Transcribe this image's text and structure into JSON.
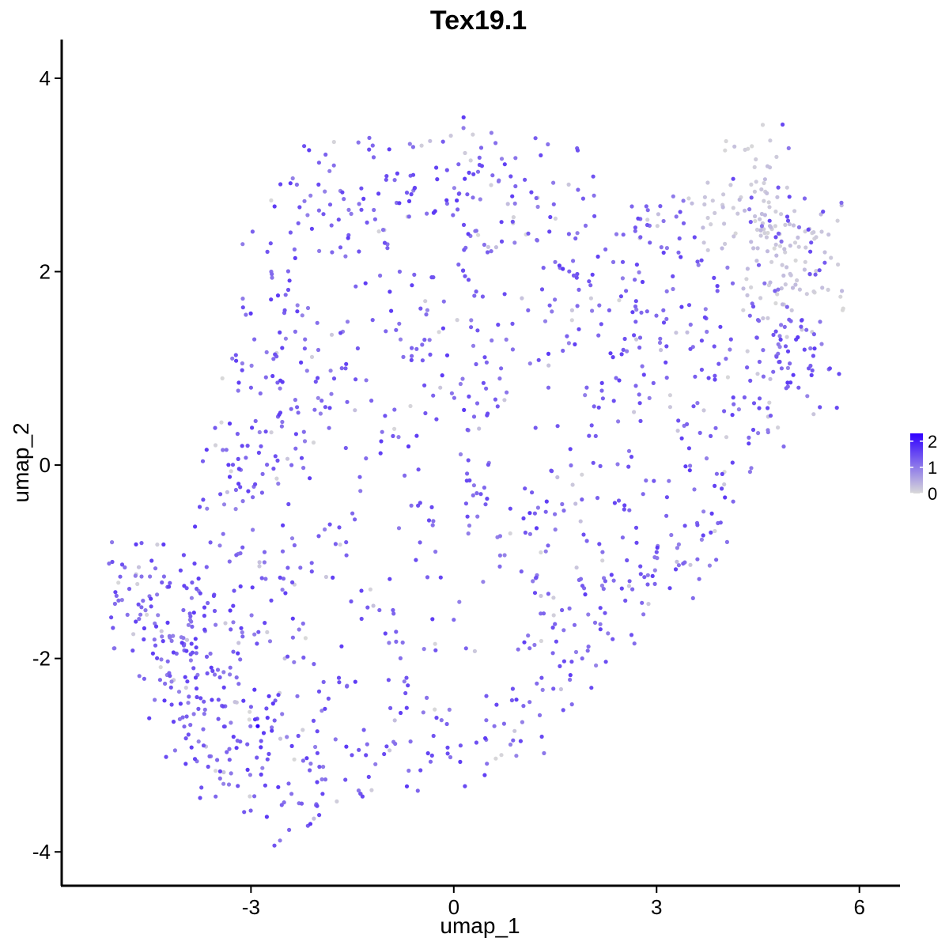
{
  "chart_data": {
    "type": "scatter",
    "title": "Tex19.1",
    "xlabel": "umap_1",
    "ylabel": "umap_2",
    "xlim": [
      -5.8,
      6.6
    ],
    "ylim": [
      -4.35,
      4.4
    ],
    "xticks": [
      -3,
      0,
      3,
      6
    ],
    "yticks": [
      -4,
      -2,
      0,
      2,
      4
    ],
    "xtick_labels": [
      "-3",
      "0",
      "3",
      "6"
    ],
    "ytick_labels": [
      "-4",
      "-2",
      "0",
      "2",
      "4"
    ],
    "grid": false,
    "legend": {
      "position": "right",
      "type": "colorbar",
      "ticks": [
        0,
        1,
        2
      ],
      "tick_labels": [
        "0",
        "1",
        "2"
      ],
      "range": [
        0,
        2.3
      ],
      "low_color": "#d9d9d9",
      "high_color": "#2f00ff"
    },
    "point_summary": {
      "approx_count": 1600,
      "expression_range": [
        0,
        2.3
      ],
      "note": "Points drawn from sampled coordinates spanning the observed cloud; grey (0) points concentrated at upper right."
    },
    "points": [
      [
        -4.8,
        -1.28,
        1.3
      ],
      [
        -4.7,
        -1.13,
        0.2
      ],
      [
        -4.68,
        -1.23,
        0.1
      ],
      [
        -4.62,
        -1.47,
        1.2
      ],
      [
        -4.3,
        -1.82,
        1.6
      ],
      [
        -4.2,
        -2.18,
        1.4
      ],
      [
        -4.1,
        -1.95,
        1.2
      ],
      [
        -3.95,
        -2.6,
        1.3
      ],
      [
        -3.9,
        -1.6,
        1.0
      ],
      [
        -3.8,
        -2.4,
        1.5
      ],
      [
        -3.7,
        -2.9,
        1.4
      ],
      [
        -3.6,
        -1.95,
        1.1
      ],
      [
        -3.5,
        -3.05,
        1.2
      ],
      [
        -3.4,
        -2.3,
        1.6
      ],
      [
        -3.35,
        -0.28,
        0.3
      ],
      [
        -3.3,
        -1.7,
        1.3
      ],
      [
        -3.2,
        -2.85,
        1.2
      ],
      [
        -3.15,
        -0.05,
        1.1
      ],
      [
        -3.05,
        0.2,
        1.4
      ],
      [
        -3.0,
        -2.5,
        1.3
      ],
      [
        -2.9,
        -2.7,
        2.3
      ],
      [
        -2.85,
        -3.2,
        1.6
      ],
      [
        -2.8,
        -0.9,
        1.2
      ],
      [
        -2.7,
        -1.4,
        1.5
      ],
      [
        -2.6,
        0.5,
        1.2
      ],
      [
        -2.5,
        -2.0,
        0.3
      ],
      [
        -2.4,
        -3.4,
        1.1
      ],
      [
        -2.3,
        -2.8,
        1.4
      ],
      [
        -2.25,
        -3.5,
        1.3
      ],
      [
        -2.2,
        1.3,
        1.1
      ],
      [
        -2.1,
        -1.1,
        1.4
      ],
      [
        -2.0,
        2.9,
        1.5
      ],
      [
        -1.95,
        -3.25,
        1.0
      ],
      [
        -1.9,
        0.6,
        1.4
      ],
      [
        -1.8,
        2.2,
        1.2
      ],
      [
        -1.7,
        -2.2,
        1.5
      ],
      [
        -1.6,
        1.0,
        1.3
      ],
      [
        -1.5,
        -0.5,
        1.2
      ],
      [
        -1.4,
        2.7,
        1.1
      ],
      [
        -1.3,
        -3.0,
        1.5
      ],
      [
        -1.2,
        1.5,
        1.3
      ],
      [
        -1.1,
        -1.5,
        1.2
      ],
      [
        -1.0,
        2.95,
        1.4
      ],
      [
        -0.95,
        -2.95,
        0.2
      ],
      [
        -0.9,
        0.3,
        1.4
      ],
      [
        -0.8,
        2.0,
        1.2
      ],
      [
        -0.7,
        -2.2,
        1.4
      ],
      [
        -0.6,
        3.0,
        1.5
      ],
      [
        -0.55,
        1.2,
        1.2
      ],
      [
        -0.5,
        -0.8,
        1.3
      ],
      [
        -0.4,
        2.6,
        1.1
      ],
      [
        -0.3,
        -2.8,
        1.4
      ],
      [
        -0.2,
        0.8,
        0.2
      ],
      [
        -0.1,
        3.05,
        1.4
      ],
      [
        0.0,
        -1.6,
        1.2
      ],
      [
        0.05,
        1.5,
        0.1
      ],
      [
        0.1,
        -2.9,
        1.4
      ],
      [
        0.2,
        2.8,
        1.3
      ],
      [
        0.25,
        3.15,
        0.1
      ],
      [
        0.3,
        0.5,
        1.2
      ],
      [
        0.4,
        -0.3,
        1.4
      ],
      [
        0.5,
        2.2,
        1.3
      ],
      [
        0.6,
        -2.7,
        1.1
      ],
      [
        0.7,
        1.0,
        1.2
      ],
      [
        0.8,
        2.7,
        0.3
      ],
      [
        0.9,
        -2.75,
        0.2
      ],
      [
        1.0,
        -1.1,
        1.3
      ],
      [
        1.05,
        2.95,
        1.4
      ],
      [
        1.1,
        1.6,
        1.2
      ],
      [
        1.2,
        -0.5,
        1.3
      ],
      [
        1.3,
        -2.2,
        1.4
      ],
      [
        1.4,
        0.8,
        1.2
      ],
      [
        1.5,
        2.1,
        1.1
      ],
      [
        1.6,
        -1.5,
        1.3
      ],
      [
        1.7,
        2.9,
        0.2
      ],
      [
        1.75,
        1.6,
        0.2
      ],
      [
        1.8,
        -0.4,
        0.3
      ],
      [
        1.9,
        -2.0,
        1.2
      ],
      [
        2.0,
        1.9,
        1.4
      ],
      [
        2.1,
        0.3,
        1.3
      ],
      [
        2.2,
        -0.9,
        1.1
      ],
      [
        2.3,
        1.6,
        1.3
      ],
      [
        2.35,
        -1.8,
        1.4
      ],
      [
        2.4,
        0.9,
        1.2
      ],
      [
        2.5,
        2.1,
        1.4
      ],
      [
        2.6,
        -1.2,
        1.3
      ],
      [
        2.7,
        1.3,
        0.2
      ],
      [
        2.8,
        -0.3,
        1.2
      ],
      [
        2.9,
        2.3,
        1.3
      ],
      [
        3.0,
        -0.9,
        1.4
      ],
      [
        3.1,
        1.6,
        1.2
      ],
      [
        3.2,
        0.6,
        0.2
      ],
      [
        3.3,
        -1.0,
        0.3
      ],
      [
        3.4,
        2.5,
        1.3
      ],
      [
        3.5,
        1.2,
        1.4
      ],
      [
        3.6,
        -0.6,
        1.2
      ],
      [
        3.7,
        2.3,
        0.2
      ],
      [
        3.8,
        0.3,
        1.4
      ],
      [
        3.9,
        1.8,
        1.3
      ],
      [
        4.0,
        -0.2,
        0.2
      ],
      [
        4.1,
        1.3,
        1.4
      ],
      [
        4.2,
        2.6,
        0.2
      ],
      [
        4.3,
        0.7,
        1.3
      ],
      [
        4.4,
        2.9,
        0.1
      ],
      [
        4.45,
        3.08,
        0.1
      ],
      [
        4.5,
        1.5,
        1.2
      ],
      [
        4.55,
        2.85,
        0.2
      ],
      [
        4.6,
        2.4,
        0.1
      ],
      [
        4.65,
        0.5,
        0.2
      ],
      [
        4.7,
        2.1,
        0.1
      ],
      [
        4.75,
        1.8,
        1.3
      ],
      [
        4.8,
        2.87,
        1.4
      ],
      [
        4.85,
        1.0,
        1.2
      ],
      [
        4.9,
        2.2,
        0.1
      ],
      [
        5.0,
        1.6,
        0.2
      ],
      [
        5.05,
        2.3,
        0.1
      ],
      [
        5.1,
        0.8,
        1.3
      ],
      [
        5.15,
        1.4,
        0.2
      ],
      [
        5.2,
        2.1,
        0.1
      ],
      [
        5.25,
        1.0,
        1.4
      ],
      [
        5.3,
        2.4,
        0.1
      ],
      [
        5.35,
        1.97,
        1.3
      ],
      [
        -2.95,
        1.3,
        1.2
      ],
      [
        -3.0,
        0.8,
        1.3
      ],
      [
        -2.7,
        2.0,
        1.1
      ],
      [
        -2.5,
        1.6,
        1.4
      ],
      [
        -2.3,
        2.5,
        1.3
      ],
      [
        -2.4,
        0.0,
        1.2
      ],
      [
        -3.25,
        -1.3,
        1.4
      ],
      [
        -3.6,
        -0.8,
        1.3
      ],
      [
        -4.0,
        -1.5,
        1.2
      ],
      [
        -3.85,
        -2.1,
        1.4
      ]
    ]
  }
}
